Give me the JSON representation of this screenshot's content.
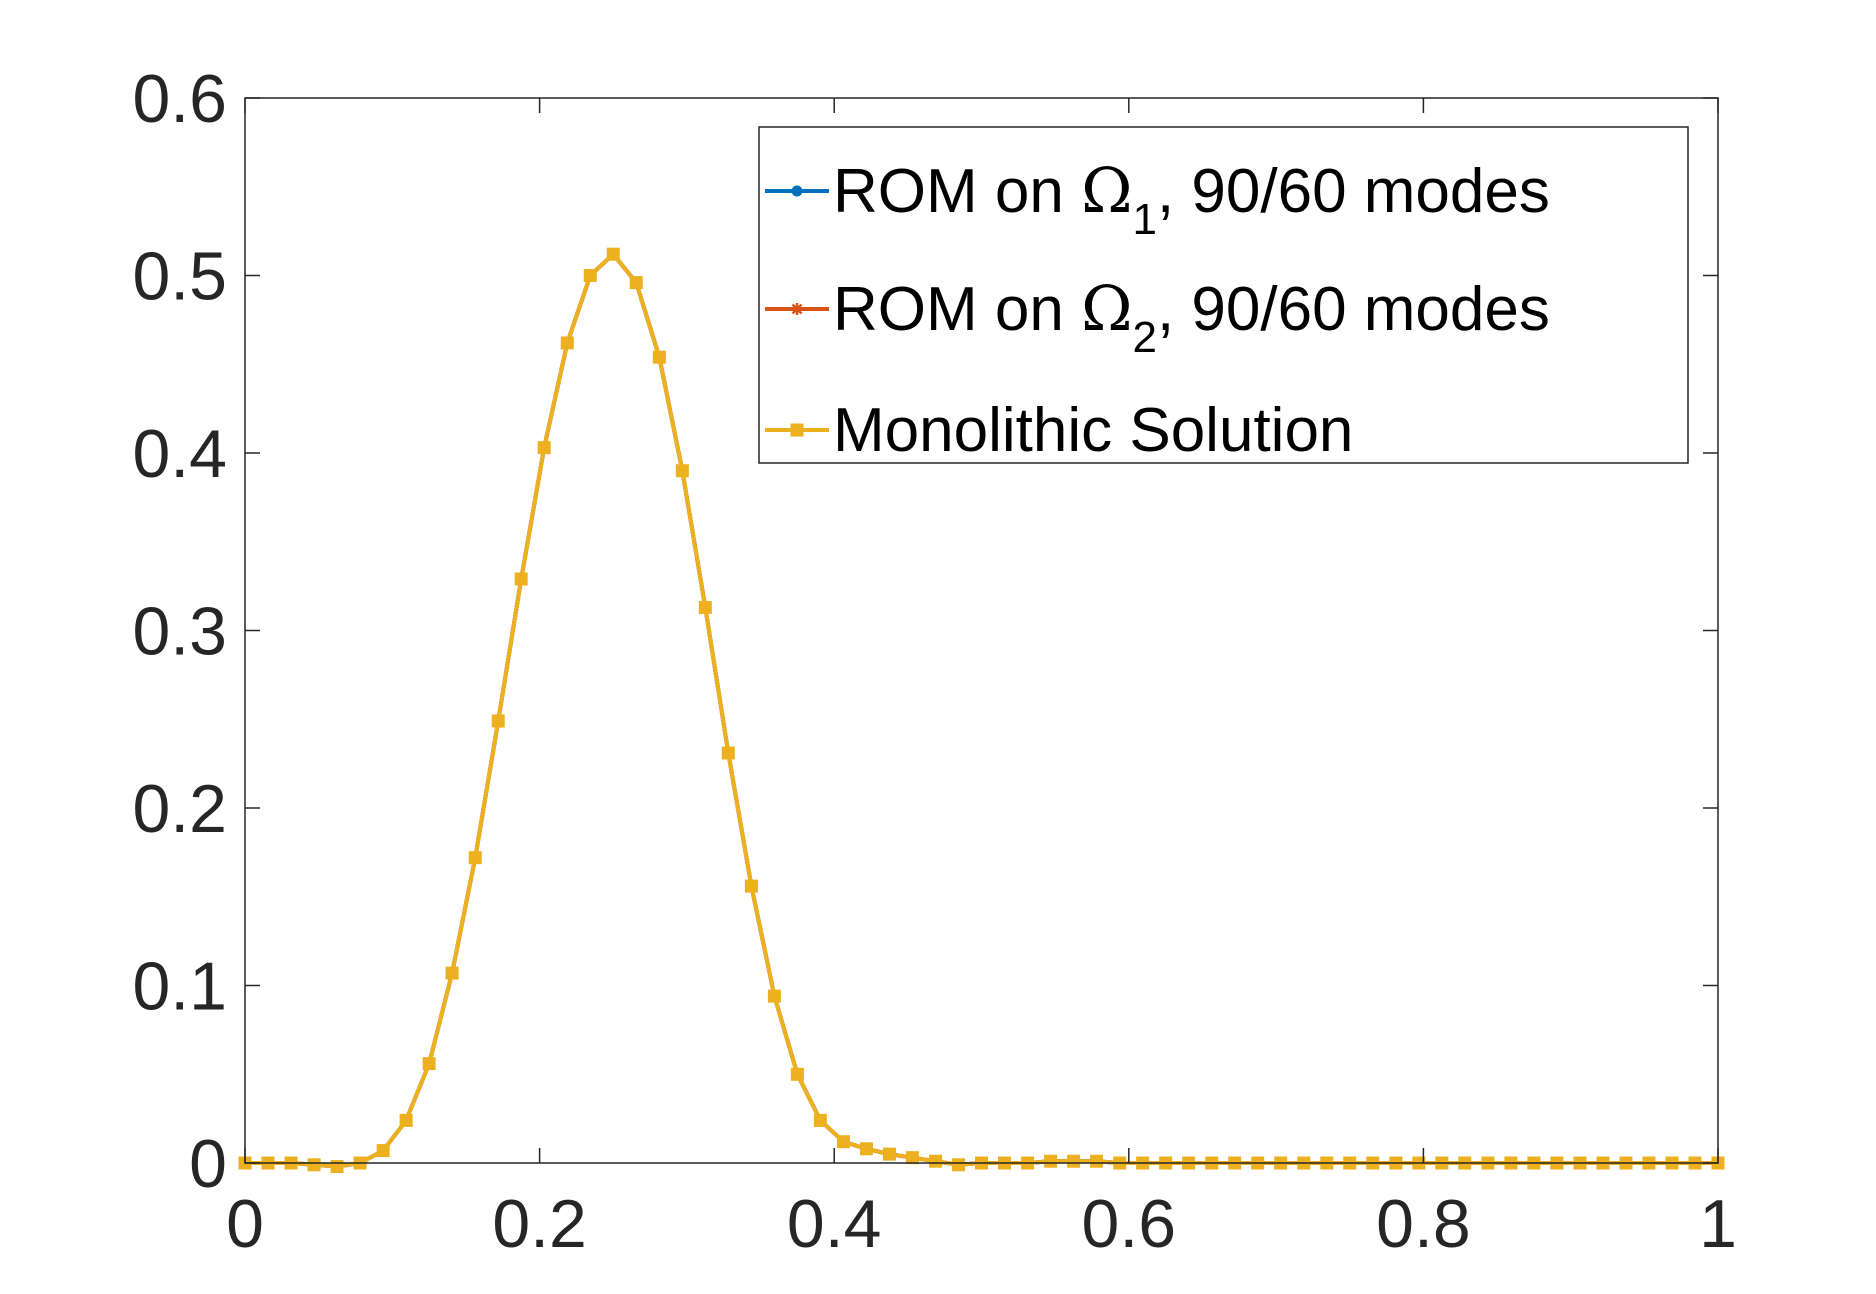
{
  "chart_data": {
    "type": "line",
    "title": "",
    "xlabel": "",
    "ylabel": "",
    "xlim": [
      0,
      1
    ],
    "ylim": [
      0,
      0.6
    ],
    "xticks": [
      0,
      0.2,
      0.4,
      0.6,
      0.8,
      1
    ],
    "yticks": [
      0,
      0.1,
      0.2,
      0.3,
      0.4,
      0.5,
      0.6
    ],
    "xtick_labels": [
      "0",
      "0.2",
      "0.4",
      "0.6",
      "0.8",
      "1"
    ],
    "ytick_labels": [
      "0",
      "0.1",
      "0.2",
      "0.3",
      "0.4",
      "0.5",
      "0.6"
    ],
    "grid": false,
    "legend_position": "top-right",
    "x": [
      0,
      0.0156,
      0.0313,
      0.0469,
      0.0625,
      0.0781,
      0.0938,
      0.1094,
      0.125,
      0.1406,
      0.1563,
      0.1719,
      0.1875,
      0.2031,
      0.2188,
      0.2344,
      0.25,
      0.2656,
      0.2813,
      0.2969,
      0.3125,
      0.3281,
      0.3438,
      0.3594,
      0.375,
      0.3906,
      0.4063,
      0.4219,
      0.4375,
      0.4531,
      0.4688,
      0.4844,
      0.5,
      0.5156,
      0.5313,
      0.5469,
      0.5625,
      0.5781,
      0.5938,
      0.6094,
      0.625,
      0.6406,
      0.6563,
      0.6719,
      0.6875,
      0.7031,
      0.7188,
      0.7344,
      0.75,
      0.7656,
      0.7813,
      0.7969,
      0.8125,
      0.8281,
      0.8438,
      0.8594,
      0.875,
      0.8906,
      0.9063,
      0.9219,
      0.9375,
      0.9531,
      0.9688,
      0.9844,
      1
    ],
    "series": [
      {
        "name": "ROM on Ω_1, 90/60 modes",
        "label_main": "ROM on ",
        "label_greek": "Ω",
        "label_sub": "1",
        "label_rest": ", 90/60 modes",
        "color": "#0072BD",
        "marker": "circle",
        "values": [
          0,
          0,
          0,
          -0.001,
          -0.002,
          0,
          0.007,
          0.024,
          0.056,
          0.107,
          0.172,
          0.249,
          0.329,
          0.403,
          0.462,
          0.5,
          0.512,
          0.496,
          0.454,
          0.39,
          0.313,
          0.231,
          0.156,
          0.094,
          0.05,
          0.024,
          0.012,
          0.008,
          0.005,
          0.003,
          0.001,
          -0.001,
          0,
          0,
          0,
          0.001,
          0.001,
          0.001,
          0,
          0,
          0,
          0,
          0,
          0,
          0,
          0,
          0,
          0,
          0,
          0,
          0,
          0,
          0,
          0,
          0,
          0,
          0,
          0,
          0,
          0,
          0,
          0,
          0,
          0,
          0
        ]
      },
      {
        "name": "ROM on Ω_2, 90/60 modes",
        "label_main": "ROM on ",
        "label_greek": "Ω",
        "label_sub": "2",
        "label_rest": ", 90/60 modes",
        "color": "#D95319",
        "marker": "asterisk",
        "values": [
          0,
          0,
          0,
          -0.001,
          -0.002,
          0,
          0.007,
          0.024,
          0.056,
          0.107,
          0.172,
          0.249,
          0.329,
          0.403,
          0.462,
          0.5,
          0.512,
          0.496,
          0.454,
          0.39,
          0.313,
          0.231,
          0.156,
          0.094,
          0.05,
          0.024,
          0.012,
          0.008,
          0.005,
          0.003,
          0.001,
          -0.001,
          0,
          0,
          0,
          0.001,
          0.001,
          0.001,
          0,
          0,
          0,
          0,
          0,
          0,
          0,
          0,
          0,
          0,
          0,
          0,
          0,
          0,
          0,
          0,
          0,
          0,
          0,
          0,
          0,
          0,
          0,
          0,
          0,
          0,
          0
        ]
      },
      {
        "name": "Monolithic Solution",
        "label_main": "Monolithic Solution",
        "label_greek": "",
        "label_sub": "",
        "label_rest": "",
        "color": "#EDB120",
        "marker": "square",
        "values": [
          0,
          0,
          0,
          -0.001,
          -0.002,
          0,
          0.007,
          0.024,
          0.056,
          0.107,
          0.172,
          0.249,
          0.329,
          0.403,
          0.462,
          0.5,
          0.512,
          0.496,
          0.454,
          0.39,
          0.313,
          0.231,
          0.156,
          0.094,
          0.05,
          0.024,
          0.012,
          0.008,
          0.005,
          0.003,
          0.001,
          -0.001,
          0,
          0,
          0,
          0.001,
          0.001,
          0.001,
          0,
          0,
          0,
          0,
          0,
          0,
          0,
          0,
          0,
          0,
          0,
          0,
          0,
          0,
          0,
          0,
          0,
          0,
          0,
          0,
          0,
          0,
          0,
          0,
          0,
          0,
          0
        ]
      }
    ]
  }
}
